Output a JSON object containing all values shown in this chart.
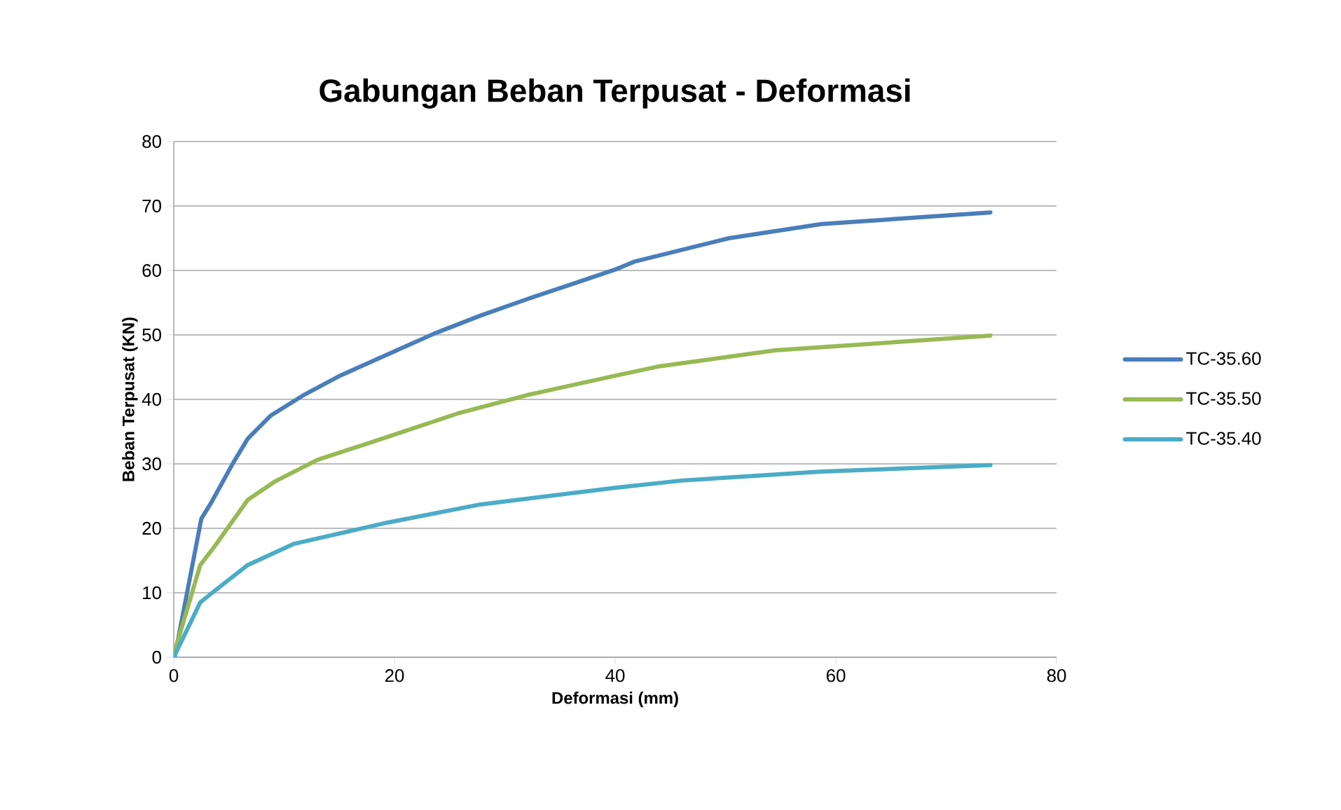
{
  "chart_data": {
    "type": "line",
    "title": "Gabungan Beban Terpusat - Deformasi",
    "xlabel": "Deformasi (mm)",
    "ylabel": "Beban Terpusat (KN)",
    "xlim": [
      0,
      80
    ],
    "xticks": [
      0,
      20,
      40,
      60,
      80
    ],
    "ylim": [
      0,
      80
    ],
    "yticks": [
      0,
      10,
      20,
      30,
      40,
      50,
      60,
      70,
      80
    ],
    "grid": "y",
    "legend": "right",
    "marker": "none",
    "line_style": "solid",
    "series": [
      {
        "name": "TC-35.60",
        "color": "#4a7ebb",
        "x": [
          0.1,
          2.5,
          3.3,
          5.4,
          6.7,
          8.8,
          11.8,
          15.1,
          20.2,
          23.6,
          27.8,
          32.1,
          36.3,
          40.1,
          41.8,
          50.3,
          58.7,
          74
        ],
        "values": [
          0.2,
          21.5,
          23.7,
          30.2,
          33.9,
          37.5,
          40.7,
          43.7,
          47.6,
          50.2,
          53.0,
          55.6,
          58.0,
          60.2,
          61.4,
          65.0,
          67.2,
          69.0
        ]
      },
      {
        "name": "TC-35.50",
        "color": "#98b954",
        "x": [
          0.1,
          2.4,
          3.7,
          6.7,
          9.2,
          13.0,
          19.4,
          25.7,
          32.1,
          40.1,
          43.9,
          54.5,
          74
        ],
        "values": [
          1.0,
          14.3,
          17.2,
          24.4,
          27.3,
          30.6,
          34.2,
          37.8,
          40.7,
          43.7,
          45.1,
          47.6,
          49.9
        ]
      },
      {
        "name": "TC-35.40",
        "color": "#4bacc6",
        "x": [
          0,
          2.4,
          3.7,
          6.7,
          10.9,
          19.4,
          27.8,
          40.1,
          46,
          58.7,
          74
        ],
        "values": [
          0,
          8.5,
          10.3,
          14.3,
          17.6,
          20.9,
          23.7,
          26.3,
          27.4,
          28.8,
          29.8
        ]
      }
    ]
  }
}
